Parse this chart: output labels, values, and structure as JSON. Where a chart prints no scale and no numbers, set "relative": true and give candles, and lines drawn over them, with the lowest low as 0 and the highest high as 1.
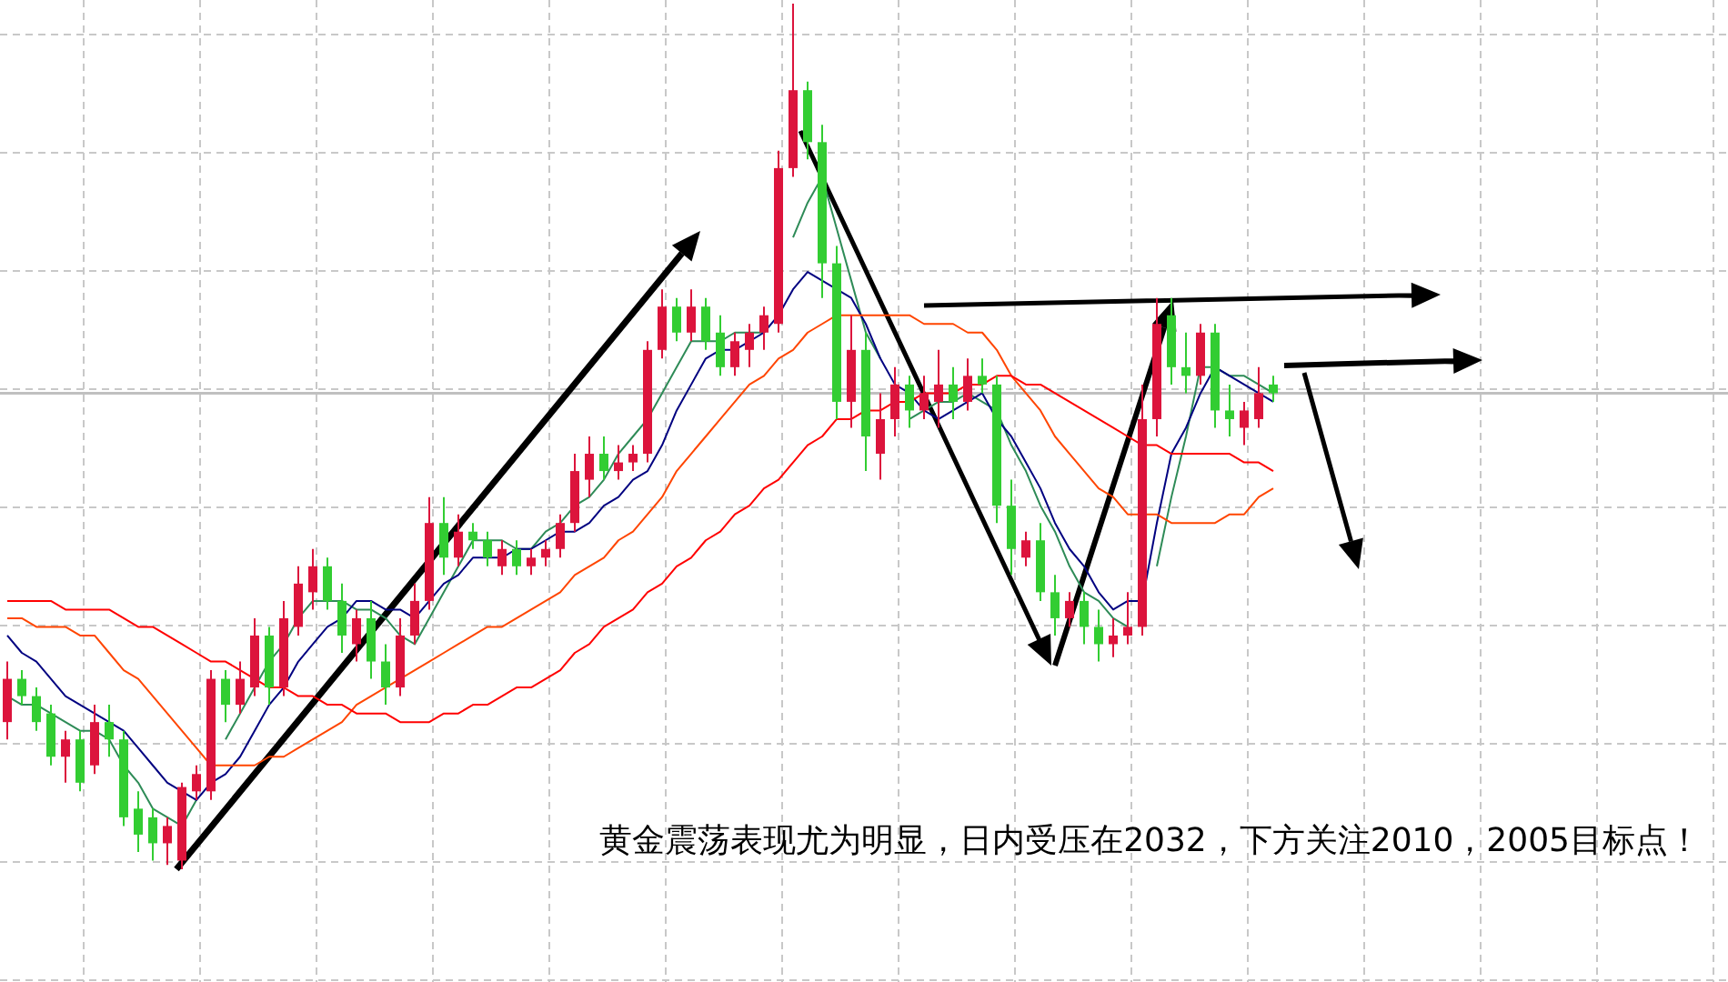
{
  "chart_data": {
    "type": "candlestick",
    "relative": true,
    "grid": true,
    "categories": [
      null,
      null,
      null,
      null,
      null,
      null,
      null,
      null,
      null,
      null,
      null,
      null,
      null,
      null,
      null,
      null,
      null,
      null,
      null,
      null,
      null,
      null,
      null,
      null,
      null,
      null,
      null,
      null,
      null,
      null,
      null,
      null,
      null,
      null,
      null,
      null,
      null,
      null,
      null,
      null,
      null,
      null,
      null,
      null,
      null,
      null,
      null,
      null,
      null,
      null,
      null,
      null,
      null,
      null,
      null,
      null,
      null,
      null,
      null,
      null,
      null,
      null,
      null,
      null,
      null,
      null,
      null,
      null,
      null,
      null,
      null,
      null,
      null,
      null,
      null,
      null,
      null,
      null,
      null,
      null,
      null,
      null,
      null,
      null,
      null,
      null,
      null,
      null
    ],
    "ohlc": [
      [
        0.17,
        0.24,
        0.15,
        0.22
      ],
      [
        0.22,
        0.23,
        0.19,
        0.2
      ],
      [
        0.2,
        0.21,
        0.16,
        0.17
      ],
      [
        0.18,
        0.19,
        0.12,
        0.13
      ],
      [
        0.13,
        0.16,
        0.1,
        0.15
      ],
      [
        0.15,
        0.16,
        0.09,
        0.1
      ],
      [
        0.12,
        0.19,
        0.11,
        0.17
      ],
      [
        0.17,
        0.19,
        0.13,
        0.15
      ],
      [
        0.15,
        0.16,
        0.05,
        0.06
      ],
      [
        0.07,
        0.09,
        0.02,
        0.04
      ],
      [
        0.06,
        0.07,
        0.01,
        0.03
      ],
      [
        0.03,
        0.06,
        0.005,
        0.05
      ],
      [
        0.01,
        0.1,
        0,
        0.095
      ],
      [
        0.09,
        0.12,
        0.08,
        0.11
      ],
      [
        0.09,
        0.23,
        0.08,
        0.22
      ],
      [
        0.22,
        0.23,
        0.17,
        0.19
      ],
      [
        0.19,
        0.24,
        0.18,
        0.22
      ],
      [
        0.21,
        0.29,
        0.2,
        0.27
      ],
      [
        0.27,
        0.28,
        0.19,
        0.21
      ],
      [
        0.21,
        0.31,
        0.2,
        0.29
      ],
      [
        0.28,
        0.35,
        0.27,
        0.33
      ],
      [
        0.32,
        0.37,
        0.3,
        0.35
      ],
      [
        0.35,
        0.36,
        0.3,
        0.31
      ],
      [
        0.31,
        0.33,
        0.25,
        0.27
      ],
      [
        0.26,
        0.3,
        0.24,
        0.29
      ],
      [
        0.29,
        0.31,
        0.22,
        0.24
      ],
      [
        0.24,
        0.26,
        0.19,
        0.21
      ],
      [
        0.21,
        0.29,
        0.2,
        0.27
      ],
      [
        0.27,
        0.33,
        0.26,
        0.31
      ],
      [
        0.31,
        0.43,
        0.3,
        0.4
      ],
      [
        0.4,
        0.43,
        0.34,
        0.36
      ],
      [
        0.36,
        0.41,
        0.35,
        0.39
      ],
      [
        0.39,
        0.4,
        0.37,
        0.38
      ],
      [
        0.38,
        0.39,
        0.35,
        0.36
      ],
      [
        0.35,
        0.38,
        0.34,
        0.37
      ],
      [
        0.37,
        0.38,
        0.34,
        0.35
      ],
      [
        0.35,
        0.37,
        0.34,
        0.36
      ],
      [
        0.36,
        0.38,
        0.35,
        0.37
      ],
      [
        0.37,
        0.41,
        0.36,
        0.4
      ],
      [
        0.4,
        0.48,
        0.39,
        0.46
      ],
      [
        0.45,
        0.5,
        0.43,
        0.48
      ],
      [
        0.48,
        0.5,
        0.45,
        0.46
      ],
      [
        0.46,
        0.49,
        0.45,
        0.47
      ],
      [
        0.47,
        0.49,
        0.46,
        0.48
      ],
      [
        0.48,
        0.61,
        0.47,
        0.6
      ],
      [
        0.6,
        0.67,
        0.59,
        0.65
      ],
      [
        0.65,
        0.66,
        0.61,
        0.62
      ],
      [
        0.62,
        0.67,
        0.61,
        0.65
      ],
      [
        0.65,
        0.66,
        0.6,
        0.61
      ],
      [
        0.62,
        0.64,
        0.57,
        0.58
      ],
      [
        0.58,
        0.62,
        0.57,
        0.61
      ],
      [
        0.6,
        0.63,
        0.58,
        0.62
      ],
      [
        0.62,
        0.65,
        0.6,
        0.64
      ],
      [
        0.63,
        0.83,
        0.62,
        0.81
      ],
      [
        0.81,
        1,
        0.8,
        0.9
      ],
      [
        0.9,
        0.91,
        0.82,
        0.84
      ],
      [
        0.84,
        0.86,
        0.66,
        0.7
      ],
      [
        0.7,
        0.72,
        0.52,
        0.54
      ],
      [
        0.54,
        0.64,
        0.51,
        0.6
      ],
      [
        0.6,
        0.62,
        0.46,
        0.5
      ],
      [
        0.48,
        0.55,
        0.45,
        0.52
      ],
      [
        0.52,
        0.58,
        0.5,
        0.56
      ],
      [
        0.56,
        0.57,
        0.51,
        0.53
      ],
      [
        0.53,
        0.57,
        0.52,
        0.55
      ],
      [
        0.54,
        0.6,
        0.51,
        0.56
      ],
      [
        0.56,
        0.58,
        0.52,
        0.54
      ],
      [
        0.54,
        0.59,
        0.53,
        0.57
      ],
      [
        0.57,
        0.59,
        0.55,
        0.56
      ],
      [
        0.56,
        0.57,
        0.4,
        0.42
      ],
      [
        0.42,
        0.45,
        0.34,
        0.37
      ],
      [
        0.36,
        0.39,
        0.35,
        0.38
      ],
      [
        0.38,
        0.4,
        0.31,
        0.32
      ],
      [
        0.32,
        0.34,
        0.27,
        0.29
      ],
      [
        0.29,
        0.32,
        0.28,
        0.31
      ],
      [
        0.31,
        0.32,
        0.26,
        0.28
      ],
      [
        0.28,
        0.3,
        0.24,
        0.26
      ],
      [
        0.26,
        0.29,
        0.245,
        0.27
      ],
      [
        0.27,
        0.32,
        0.26,
        0.28
      ],
      [
        0.28,
        0.56,
        0.27,
        0.52
      ],
      [
        0.52,
        0.66,
        0.5,
        0.63
      ],
      [
        0.64,
        0.66,
        0.56,
        0.58
      ],
      [
        0.58,
        0.62,
        0.55,
        0.57
      ],
      [
        0.57,
        0.63,
        0.56,
        0.62
      ],
      [
        0.62,
        0.63,
        0.51,
        0.53
      ],
      [
        0.53,
        0.56,
        0.5,
        0.52
      ],
      [
        0.51,
        0.54,
        0.49,
        0.53
      ],
      [
        0.52,
        0.58,
        0.51,
        0.55
      ],
      [
        0.56,
        0.57,
        0.54,
        0.55
      ]
    ],
    "series": [
      {
        "type": "line",
        "color": "#2e8b57",
        "values": [
          0.2,
          0.19,
          0.19,
          0.18,
          0.17,
          0.16,
          0.16,
          0.15,
          0.12,
          0.1,
          0.07,
          0.06,
          0.05,
          0.08,
          null,
          0.15,
          0.18,
          0.21,
          0.24,
          0.26,
          0.29,
          0.31,
          0.31,
          0.31,
          0.3,
          0.3,
          0.29,
          0.27,
          0.26,
          0.29,
          0.32,
          0.35,
          0.38,
          0.38,
          0.38,
          0.37,
          0.37,
          0.39,
          0.4,
          0.42,
          0.43,
          0.45,
          0.48,
          0.5,
          0.52,
          0.55,
          0.58,
          0.61,
          0.61,
          0.61,
          0.62,
          0.62,
          0.62,
          null,
          0.73,
          0.77,
          0.8,
          0.74,
          0.68,
          0.62,
          0.59,
          null,
          0.52,
          0.53,
          0.54,
          0.54,
          0.55,
          0.54,
          0.53,
          0.49,
          0.46,
          0.42,
          0.39,
          0.35,
          0.32,
          0.31,
          0.29,
          0.28,
          null,
          0.35,
          0.43,
          0.5,
          0.58,
          0.58,
          0.57,
          0.57,
          0.56,
          0.55
        ]
      },
      {
        "type": "line",
        "color": "#000080",
        "values": [
          0.27,
          0.25,
          0.24,
          0.22,
          0.2,
          0.19,
          0.18,
          0.17,
          0.16,
          0.14,
          0.12,
          0.1,
          0.09,
          0.08,
          0.1,
          0.11,
          0.13,
          0.16,
          0.19,
          0.21,
          0.24,
          0.26,
          0.28,
          0.29,
          0.31,
          0.31,
          0.3,
          0.3,
          0.29,
          0.31,
          0.33,
          0.34,
          0.36,
          0.36,
          0.36,
          0.37,
          0.37,
          0.38,
          0.39,
          0.39,
          0.4,
          0.42,
          0.43,
          0.45,
          0.46,
          0.49,
          0.53,
          0.56,
          0.59,
          0.6,
          0.6,
          0.61,
          0.62,
          0.64,
          0.67,
          0.69,
          0.68,
          0.67,
          0.66,
          0.63,
          0.59,
          0.56,
          0.55,
          0.53,
          0.52,
          0.53,
          0.54,
          0.55,
          0.52,
          0.5,
          0.47,
          0.44,
          0.4,
          0.37,
          0.35,
          0.32,
          0.3,
          0.31,
          0.31,
          0.4,
          0.48,
          0.51,
          0.55,
          0.58,
          0.57,
          0.56,
          0.55,
          0.54
        ]
      },
      {
        "type": "line",
        "color": "#ff4500",
        "values": [
          0.29,
          0.29,
          0.28,
          0.28,
          0.28,
          0.27,
          0.27,
          0.25,
          0.23,
          0.22,
          0.2,
          0.18,
          0.16,
          0.14,
          0.12,
          0.12,
          0.12,
          0.12,
          0.13,
          0.13,
          0.14,
          0.15,
          0.16,
          0.17,
          0.19,
          0.2,
          0.21,
          0.22,
          0.23,
          0.24,
          0.25,
          0.26,
          0.27,
          0.28,
          0.28,
          0.29,
          0.3,
          0.31,
          0.32,
          0.34,
          0.35,
          0.36,
          0.38,
          0.39,
          0.41,
          0.43,
          0.46,
          0.48,
          0.5,
          0.52,
          0.54,
          0.56,
          0.57,
          0.59,
          0.6,
          0.62,
          0.63,
          0.64,
          0.64,
          0.64,
          0.64,
          0.64,
          0.64,
          0.63,
          0.63,
          0.63,
          0.62,
          0.62,
          0.6,
          0.57,
          0.55,
          0.53,
          0.5,
          0.48,
          0.46,
          0.44,
          0.43,
          0.41,
          0.41,
          0.41,
          0.4,
          0.4,
          0.4,
          0.4,
          0.41,
          0.41,
          0.43,
          0.44
        ]
      },
      {
        "type": "line",
        "color": "#ff0000",
        "values": [
          0.31,
          0.31,
          0.31,
          0.31,
          0.3,
          0.3,
          0.3,
          0.3,
          0.29,
          0.28,
          0.28,
          0.27,
          0.26,
          0.25,
          0.24,
          0.24,
          0.23,
          0.22,
          0.21,
          0.21,
          0.2,
          0.2,
          0.19,
          0.19,
          0.18,
          0.18,
          0.18,
          0.17,
          0.17,
          0.17,
          0.18,
          0.18,
          0.19,
          0.19,
          0.2,
          0.21,
          0.21,
          0.22,
          0.23,
          0.25,
          0.26,
          0.28,
          0.29,
          0.3,
          0.32,
          0.33,
          0.35,
          0.36,
          0.38,
          0.39,
          0.41,
          0.42,
          0.44,
          0.45,
          0.47,
          0.49,
          0.5,
          0.52,
          0.52,
          0.53,
          0.53,
          0.54,
          0.54,
          0.55,
          0.55,
          0.55,
          0.56,
          0.56,
          0.57,
          0.57,
          0.56,
          0.56,
          0.55,
          0.54,
          0.53,
          0.52,
          0.51,
          0.5,
          0.49,
          0.49,
          0.48,
          0.48,
          0.48,
          0.48,
          0.48,
          0.47,
          0.47,
          0.46
        ]
      }
    ],
    "ref_lines": [
      {
        "axis": "y",
        "value": 0.55,
        "color": "#c0c0c0",
        "line_style": "solid"
      }
    ],
    "annotations": [
      "黄金震荡表现尤为明显，日内受压在2032，下方关注2010，2005目标点！"
    ]
  }
}
